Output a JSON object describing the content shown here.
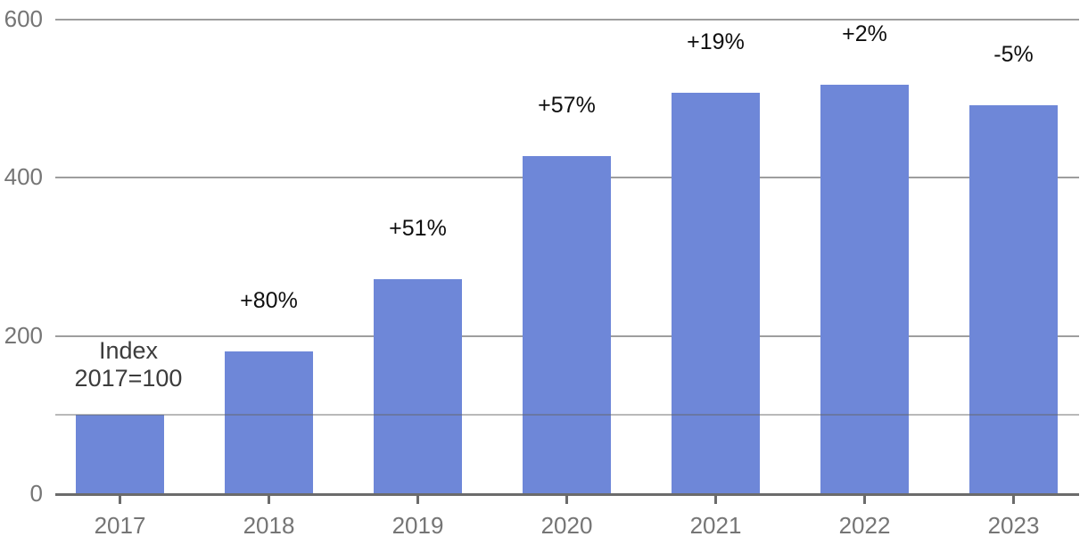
{
  "chart_data": {
    "type": "bar",
    "title": "",
    "xlabel": "",
    "ylabel": "",
    "categories": [
      "2017",
      "2018",
      "2019",
      "2020",
      "2021",
      "2022",
      "2023"
    ],
    "values": [
      100,
      180,
      272,
      427,
      508,
      518,
      492
    ],
    "bar_labels": [
      "",
      "+80%",
      "+51%",
      "+57%",
      "+19%",
      "+2%",
      "-5%"
    ],
    "annotation": {
      "lines": [
        "Index",
        "2017=100"
      ]
    },
    "ylim": [
      0,
      600
    ],
    "yticks": [
      0,
      200,
      400,
      600
    ],
    "reference_line": {
      "value": 100
    },
    "grid": true,
    "legend": "none",
    "colors": {
      "bar": "#6e87d8",
      "gridline": "#9e9e9e",
      "reference_line": "rgba(100,100,100,0.45)",
      "axis": "#6b6b6b",
      "axis_labels": "#757575",
      "bar_labels": "#0f0f0f",
      "annotation": "#3c3c3c",
      "background": "#ffffff"
    }
  }
}
